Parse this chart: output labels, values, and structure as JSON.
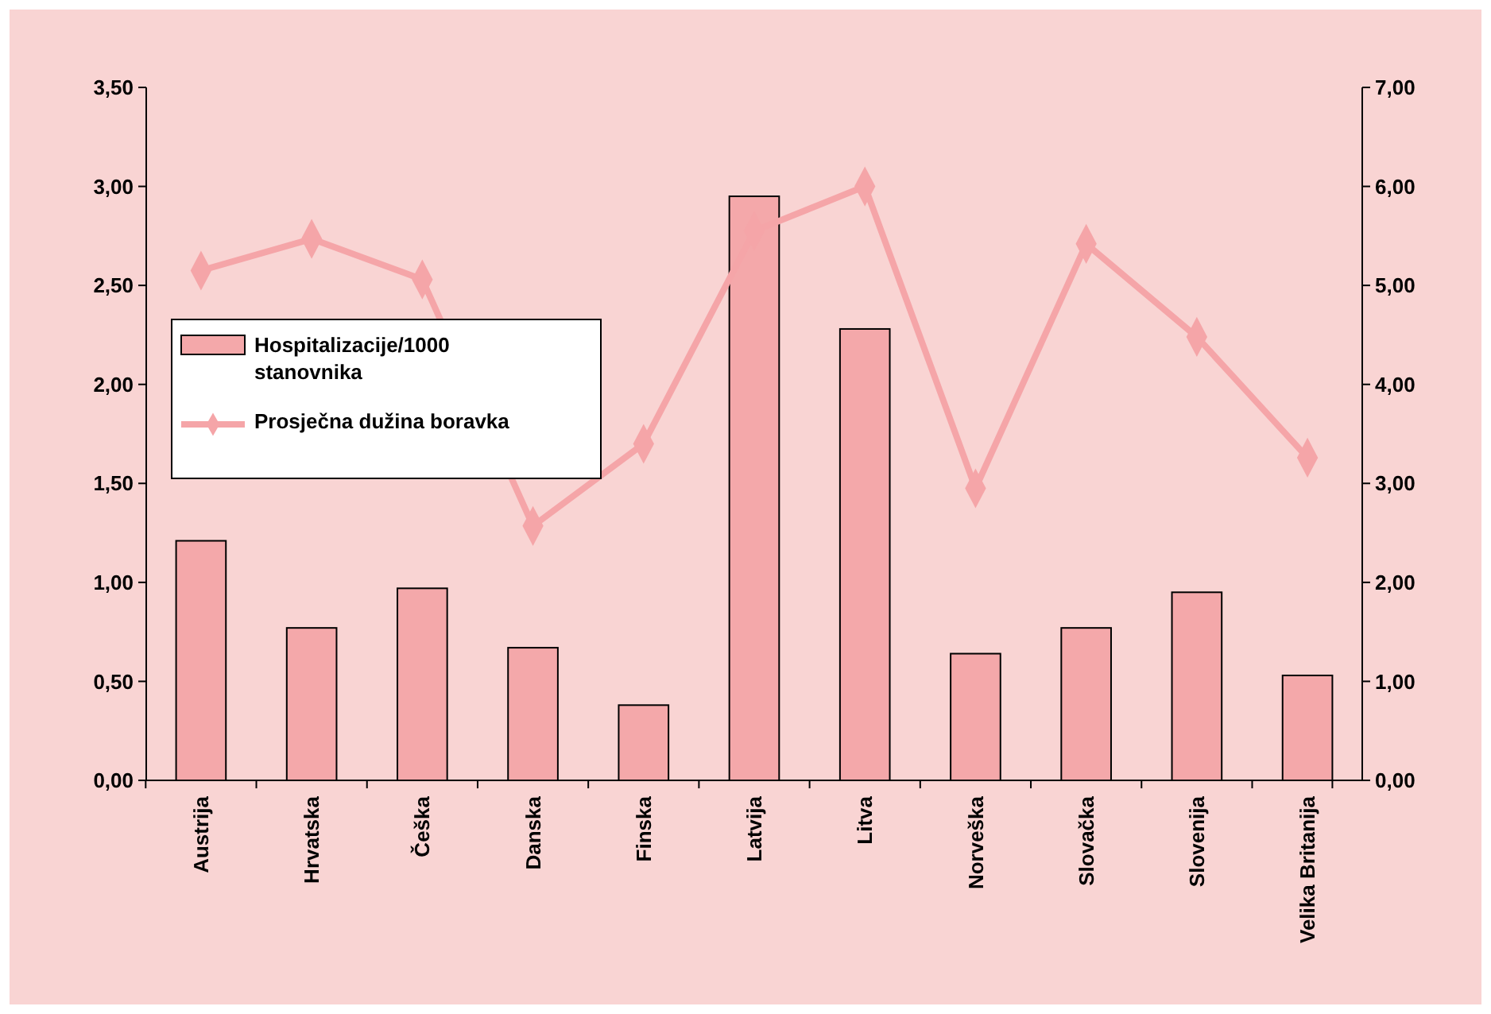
{
  "chart_data": {
    "type": "bar",
    "categories": [
      "Austrija",
      "Hrvatska",
      "Češka",
      "Danska",
      "Finska",
      "Latvija",
      "Litva",
      "Norveška",
      "Slovačka",
      "Slovenija",
      "Velika Britanija"
    ],
    "series": [
      {
        "name": "Hospitalizacije/1000 stanovnika",
        "color": "#f4a8aa",
        "values": [
          1.21,
          0.77,
          0.97,
          0.67,
          0.38,
          2.95,
          2.28,
          0.64,
          0.77,
          0.95,
          0.53
        ]
      },
      {
        "name": "Prosječna dužina boravka",
        "type": "line",
        "axis": "y2",
        "color": "#f5a5a8",
        "values": [
          5.15,
          5.47,
          5.06,
          2.57,
          3.4,
          5.55,
          6.0,
          2.95,
          5.42,
          4.48,
          3.26
        ]
      }
    ],
    "ylim": [
      0,
      3.5
    ],
    "yticks": [
      {
        "value": 0,
        "label": "0,00"
      },
      {
        "value": 0.5,
        "label": "0,50"
      },
      {
        "value": 1,
        "label": "1,00"
      },
      {
        "value": 1.5,
        "label": "1,50"
      },
      {
        "value": 2,
        "label": "2,00"
      },
      {
        "value": 2.5,
        "label": "2,50"
      },
      {
        "value": 3,
        "label": "3,00"
      },
      {
        "value": 3.5,
        "label": "3,50"
      }
    ],
    "y2lim": [
      0,
      7
    ],
    "y2ticks": [
      {
        "value": 0,
        "label": "0,00"
      },
      {
        "value": 1,
        "label": "1,00"
      },
      {
        "value": 2,
        "label": "2,00"
      },
      {
        "value": 3,
        "label": "3,00"
      },
      {
        "value": 4,
        "label": "4,00"
      },
      {
        "value": 5,
        "label": "5,00"
      },
      {
        "value": 6,
        "label": "6,00"
      },
      {
        "value": 7,
        "label": "7,00"
      }
    ],
    "marker": "diamond",
    "grid": false,
    "legend": "left"
  }
}
